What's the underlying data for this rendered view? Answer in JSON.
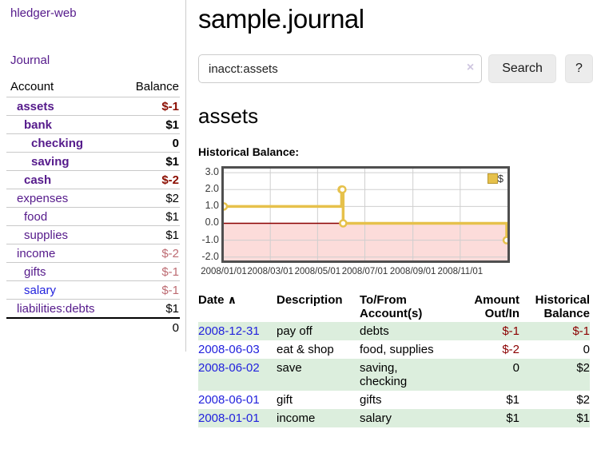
{
  "sidebar": {
    "app_title": "hledger-web",
    "nav": {
      "journal": "Journal"
    },
    "accounts_table": {
      "headers": {
        "account": "Account",
        "balance": "Balance"
      },
      "rows": [
        {
          "name": "assets",
          "indent": 1,
          "bold": true,
          "link": "purple",
          "balance": "$-1"
        },
        {
          "name": "bank",
          "indent": 2,
          "bold": true,
          "link": "purple",
          "balance": "$1"
        },
        {
          "name": "checking",
          "indent": 3,
          "bold": true,
          "link": "purple",
          "balance": "0"
        },
        {
          "name": "saving",
          "indent": 3,
          "bold": true,
          "link": "purple",
          "balance": "$1"
        },
        {
          "name": "cash",
          "indent": 2,
          "bold": true,
          "link": "purple",
          "balance": "$-2"
        },
        {
          "name": "expenses",
          "indent": 1,
          "bold": false,
          "link": "purple",
          "balance": "$2"
        },
        {
          "name": "food",
          "indent": 2,
          "bold": false,
          "link": "purple",
          "balance": "$1"
        },
        {
          "name": "supplies",
          "indent": 2,
          "bold": false,
          "link": "purple",
          "balance": "$1"
        },
        {
          "name": "income",
          "indent": 1,
          "bold": false,
          "link": "purple",
          "balance": "$-2"
        },
        {
          "name": "gifts",
          "indent": 2,
          "bold": false,
          "link": "purple",
          "balance": "$-1"
        },
        {
          "name": "salary",
          "indent": 2,
          "bold": false,
          "link": "blue",
          "balance": "$-1"
        },
        {
          "name": "liabilities:debts",
          "indent": 1,
          "bold": false,
          "link": "purple",
          "balance": "$1"
        }
      ],
      "total": "0"
    }
  },
  "header": {
    "title": "sample.journal"
  },
  "search": {
    "value": "inacct:assets",
    "clear_icon": "×",
    "button": "Search",
    "help_button": "?"
  },
  "account_page": {
    "title": "assets",
    "chart_label": "Historical Balance:"
  },
  "chart_data": {
    "type": "line",
    "style": "step",
    "title": "Historical Balance",
    "series": [
      {
        "name": "$",
        "color": "#e6c14b",
        "points": [
          {
            "date": "2008-01-01",
            "value": 1
          },
          {
            "date": "2008-06-01",
            "value": 2
          },
          {
            "date": "2008-06-02",
            "value": 2
          },
          {
            "date": "2008-06-03",
            "value": 0
          },
          {
            "date": "2008-12-31",
            "value": -1
          }
        ]
      }
    ],
    "x_tick_labels": [
      "2008/01/01",
      "2008/03/01",
      "2008/05/01",
      "2008/07/01",
      "2008/09/01",
      "2008/11/01"
    ],
    "x_tick_dates": [
      "2008-01-01",
      "2008-03-01",
      "2008-05-01",
      "2008-07-01",
      "2008-09-01",
      "2008-11-01"
    ],
    "y_tick_labels": [
      "3.0",
      "2.0",
      "1.0",
      "0.0",
      "-1.0",
      "-2.0"
    ],
    "y_ticks": [
      3,
      2,
      1,
      0,
      -1,
      -2
    ],
    "xlim": [
      "2008-01-01",
      "2009-01-01"
    ],
    "ylim": [
      -2.2,
      3.24
    ],
    "grid": true,
    "legend": {
      "label": "$",
      "position": "top-right"
    },
    "colors": {
      "line": "#e6c14b",
      "marker_fill": "#ffffff",
      "negative_region": "#fcdcda",
      "zero_line": "#8b0000",
      "gridline": "#cfcfcf",
      "plot_border": "#4f4f4f"
    }
  },
  "register_table": {
    "headers": {
      "date": "Date",
      "sort_icon": "∧",
      "description": "Description",
      "accounts": "To/From Account(s)",
      "amount": "Amount Out/In",
      "balance": "Historical Balance"
    },
    "rows": [
      {
        "date": "2008-12-31",
        "description": "pay off",
        "accounts": "debts",
        "amount": "$-1",
        "balance": "$-1"
      },
      {
        "date": "2008-06-03",
        "description": "eat & shop",
        "accounts": "food, supplies",
        "amount": "$-2",
        "balance": "0"
      },
      {
        "date": "2008-06-02",
        "description": "save",
        "accounts": "saving, checking",
        "amount": "0",
        "balance": "$2"
      },
      {
        "date": "2008-06-01",
        "description": "gift",
        "accounts": "gifts",
        "amount": "$1",
        "balance": "$2"
      },
      {
        "date": "2008-01-01",
        "description": "income",
        "accounts": "salary",
        "amount": "$1",
        "balance": "$1"
      }
    ]
  },
  "colors": {
    "link_purple": "#551A8B",
    "link_blue": "#2222dd",
    "negative_bold": "#8b0d00",
    "negative_muted": "#bd6b72",
    "negative_table": "#8b0000",
    "row_stripe_green": "#dceedd",
    "button_bg": "#ececec"
  }
}
